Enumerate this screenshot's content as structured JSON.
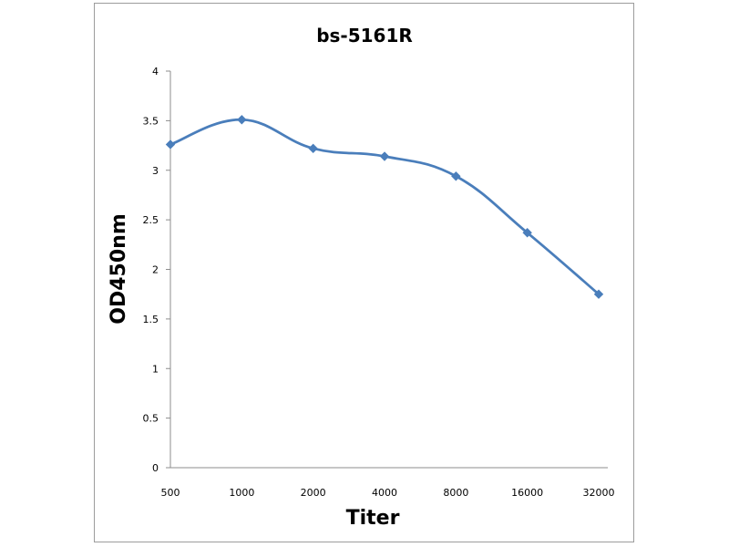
{
  "chart_data": {
    "type": "line",
    "title": "bs-5161R",
    "xlabel": "Titer",
    "ylabel": "OD450nm",
    "categories": [
      "500",
      "1000",
      "2000",
      "4000",
      "8000",
      "16000",
      "32000"
    ],
    "series": [
      {
        "values": [
          3.26,
          3.51,
          3.22,
          3.14,
          2.94,
          2.37,
          1.75
        ]
      }
    ],
    "ylim": [
      0,
      4
    ],
    "yticks": [
      "0",
      "0.5",
      "1",
      "1.5",
      "2",
      "2.5",
      "3",
      "3.5",
      "4"
    ],
    "grid": false,
    "legend": "none",
    "line_color": "#4a7ebb",
    "marker": "diamond"
  }
}
